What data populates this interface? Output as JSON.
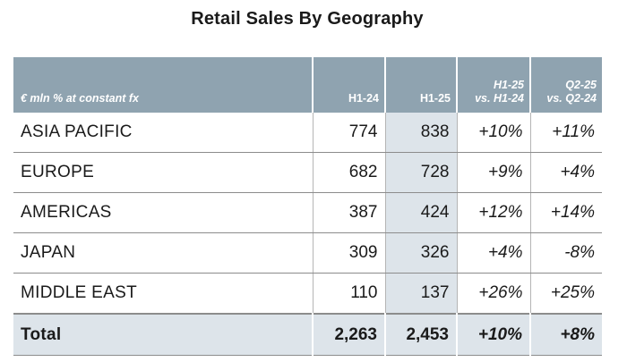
{
  "title": "Retail Sales By Geography",
  "table": {
    "headers": {
      "region": "€ mln % at constant fx",
      "h124": "H1-24",
      "h125": "H1-25",
      "growth_h1_line1": "H1-25",
      "growth_h1_line2": "vs. H1-24",
      "growth_q2_line1": "Q2-25",
      "growth_q2_line2": "vs. Q2-24"
    },
    "rows": [
      {
        "region": "ASIA PACIFIC",
        "h124": "774",
        "h125": "838",
        "growth_h1": "+10%",
        "growth_q2": "+11%"
      },
      {
        "region": "EUROPE",
        "h124": "682",
        "h125": "728",
        "growth_h1": "+9%",
        "growth_q2": "+4%"
      },
      {
        "region": "AMERICAS",
        "h124": "387",
        "h125": "424",
        "growth_h1": "+12%",
        "growth_q2": "+14%"
      },
      {
        "region": "JAPAN",
        "h124": "309",
        "h125": "326",
        "growth_h1": "+4%",
        "growth_q2": "-8%"
      },
      {
        "region": "MIDDLE EAST",
        "h124": "110",
        "h125": "137",
        "growth_h1": "+26%",
        "growth_q2": "+25%"
      }
    ],
    "total": {
      "region": "Total",
      "h124": "2,263",
      "h125": "2,453",
      "growth_h1": "+10%",
      "growth_q2": "+8%"
    }
  },
  "colors": {
    "header_bg": "#8fa3b0",
    "highlight_bg": "#dde4ea",
    "text": "#1a1a1a"
  }
}
